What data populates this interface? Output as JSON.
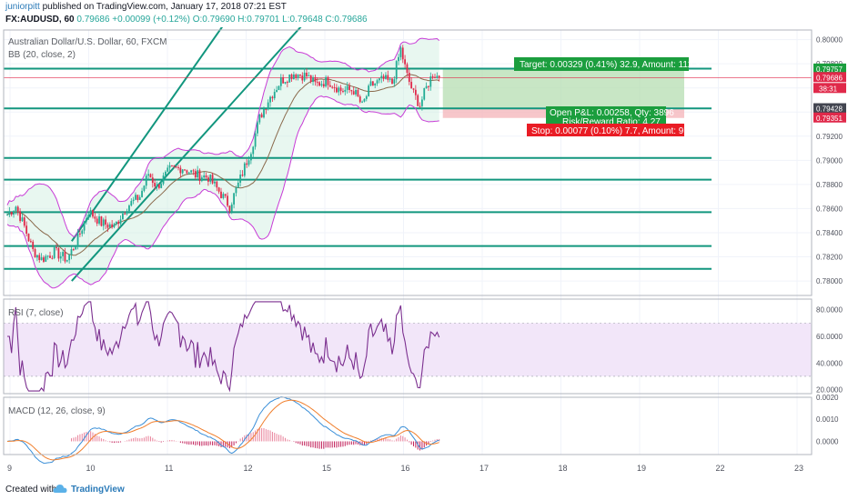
{
  "header": {
    "author": "juniorpitt",
    "published": "published on TradingView.com, January 17, 2018 07:21 EST",
    "symbol_line": "FX:AUDUSD, 60",
    "last": "0.79686",
    "change": "+0.00099 (+0.12%)",
    "o": "O:0.79690",
    "h": "H:0.79701",
    "l": "L:0.79648",
    "c": "C:0.79686"
  },
  "labels": {
    "instrument": "Australian Dollar/U.S. Dollar, 60, FXCM",
    "bb": "BB (20, close, 2)",
    "rsi": "RSI (7, close)",
    "macd": "MACD (12, 26, close, 9)"
  },
  "position": {
    "target": "Target: 0.00329 (0.41%) 32.9, Amount: 112.82",
    "open": "Open P&L: 0.00258, Qty: 3896",
    "rr": "Risk/Reward Ratio: 4.27",
    "stop": "Stop: 0.00077 (0.10%) 7.7, Amount: 97"
  },
  "price_tags": {
    "target": "0.79757",
    "timer": "38:31",
    "last": "0.79686",
    "entry": "0.79428",
    "stop": "0.79351"
  },
  "footer": {
    "created": "Created with",
    "brand": "TradingView"
  },
  "colors": {
    "up": "#22ab94",
    "down": "#e0294a",
    "levels": "#12967e",
    "bb": "#c83bd6",
    "basis": "#8a6a4c",
    "rsi": "#7b2f8f",
    "macd": "#3a8fd8",
    "signal": "#f07f2d"
  },
  "chart_data": [
    {
      "type": "candlestick",
      "title": "Australian Dollar/U.S. Dollar, 60, FXCM",
      "x_tick_labels": [
        "9",
        "10",
        "11",
        "12",
        "15",
        "16",
        "17",
        "18",
        "19",
        "22",
        "23"
      ],
      "y_ticks": [
        "0.80000",
        "0.79800",
        "0.79600",
        "0.79400",
        "0.79200",
        "0.79000",
        "0.78800",
        "0.78600",
        "0.78400",
        "0.78200",
        "0.78000"
      ],
      "ylim": [
        0.7788,
        0.8008
      ],
      "grid": true,
      "anchors": [
        {
          "i": 0,
          "p": 0.7855
        },
        {
          "i": 4,
          "p": 0.7862
        },
        {
          "i": 8,
          "p": 0.7845
        },
        {
          "i": 12,
          "p": 0.7825
        },
        {
          "i": 16,
          "p": 0.7818
        },
        {
          "i": 22,
          "p": 0.7824
        },
        {
          "i": 28,
          "p": 0.7818
        },
        {
          "i": 33,
          "p": 0.7835
        },
        {
          "i": 38,
          "p": 0.7858
        },
        {
          "i": 44,
          "p": 0.7848
        },
        {
          "i": 50,
          "p": 0.7845
        },
        {
          "i": 56,
          "p": 0.7862
        },
        {
          "i": 62,
          "p": 0.787
        },
        {
          "i": 66,
          "p": 0.7889
        },
        {
          "i": 70,
          "p": 0.7878
        },
        {
          "i": 76,
          "p": 0.7892
        },
        {
          "i": 82,
          "p": 0.7894
        },
        {
          "i": 88,
          "p": 0.7888
        },
        {
          "i": 94,
          "p": 0.7886
        },
        {
          "i": 100,
          "p": 0.7872
        },
        {
          "i": 104,
          "p": 0.7862
        },
        {
          "i": 108,
          "p": 0.788
        },
        {
          "i": 114,
          "p": 0.7909
        },
        {
          "i": 118,
          "p": 0.7935
        },
        {
          "i": 122,
          "p": 0.795
        },
        {
          "i": 128,
          "p": 0.7966
        },
        {
          "i": 134,
          "p": 0.7972
        },
        {
          "i": 140,
          "p": 0.797
        },
        {
          "i": 144,
          "p": 0.7963
        },
        {
          "i": 150,
          "p": 0.7966
        },
        {
          "i": 156,
          "p": 0.7958
        },
        {
          "i": 162,
          "p": 0.7958
        },
        {
          "i": 166,
          "p": 0.7945
        },
        {
          "i": 170,
          "p": 0.7962
        },
        {
          "i": 176,
          "p": 0.7967
        },
        {
          "i": 180,
          "p": 0.7964
        },
        {
          "i": 184,
          "p": 0.7992
        },
        {
          "i": 187,
          "p": 0.797
        },
        {
          "i": 190,
          "p": 0.7955
        },
        {
          "i": 193,
          "p": 0.7946
        },
        {
          "i": 196,
          "p": 0.796
        },
        {
          "i": 199,
          "p": 0.7972
        },
        {
          "i": 202,
          "p": 0.79686
        }
      ],
      "levels": [
        0.7976,
        0.7943,
        0.7902,
        0.7884,
        0.7857,
        0.7829,
        0.781
      ],
      "channel": [
        {
          "from": [
            0.784,
            0.7833
          ],
          "to": [
            2.7,
            0.8011
          ]
        },
        {
          "from": [
            0.784,
            0.78
          ],
          "to": [
            3.7,
            0.8011
          ]
        }
      ],
      "bollinger": {
        "period": 20,
        "mult": 2
      },
      "position": {
        "entry": 0.79428,
        "target": 0.79757,
        "stop": 0.79351,
        "last": 0.79686
      }
    },
    {
      "type": "line",
      "title": "RSI (7, close)",
      "y_ticks": [
        "80.0000",
        "60.0000",
        "40.0000",
        "20.0000"
      ],
      "ylim": [
        17,
        88
      ],
      "bands": [
        30,
        70
      ]
    },
    {
      "type": "line",
      "title": "MACD (12, 26, close, 9)",
      "y_ticks": [
        "0.0020",
        "0.0010",
        "0.0000"
      ],
      "ylim": [
        -0.0006,
        0.002
      ],
      "series": [
        "MACD",
        "Signal",
        "Histogram"
      ]
    }
  ]
}
